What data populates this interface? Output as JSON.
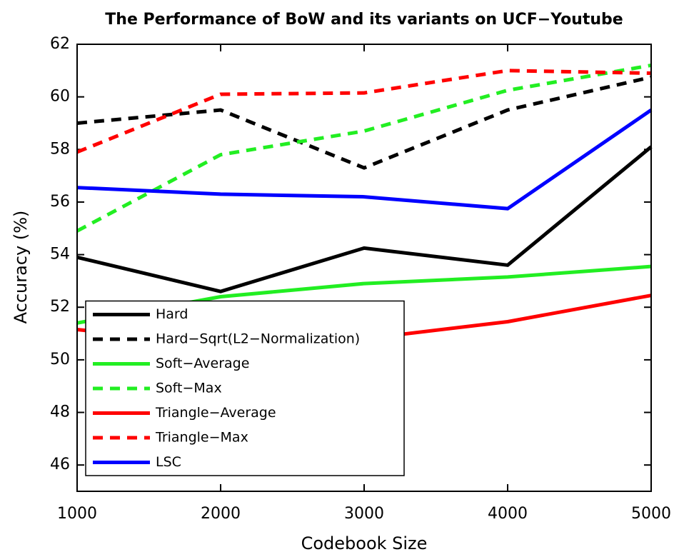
{
  "chart_data": {
    "type": "line",
    "title": "The Performance of BoW and its variants on UCF−Youtube",
    "x_label": "Codebook Size",
    "y_label": "Accuracy (%)",
    "x": [
      1000,
      2000,
      3000,
      4000,
      5000
    ],
    "xlim": [
      1000,
      5000
    ],
    "xticks": [
      1000,
      2000,
      3000,
      4000,
      5000
    ],
    "ylim": [
      45,
      62
    ],
    "yticks": [
      46,
      48,
      50,
      52,
      54,
      56,
      58,
      60,
      62
    ],
    "legend_position": "lower left",
    "series": [
      {
        "name": "Hard",
        "color": "#000000",
        "dashed": false,
        "values": [
          53.9,
          52.6,
          54.25,
          53.6,
          58.1
        ]
      },
      {
        "name": "Hard−Sqrt(L2−Normalization)",
        "color": "#000000",
        "dashed": true,
        "values": [
          59.0,
          59.5,
          57.3,
          59.5,
          60.75
        ]
      },
      {
        "name": "Soft−Average",
        "color": "#22ee22",
        "dashed": false,
        "values": [
          51.4,
          52.4,
          52.9,
          53.15,
          53.55
        ]
      },
      {
        "name": "Soft−Max",
        "color": "#22ee22",
        "dashed": true,
        "values": [
          54.9,
          57.8,
          58.7,
          60.25,
          61.2
        ]
      },
      {
        "name": "Triangle−Average",
        "color": "#ff0000",
        "dashed": false,
        "values": [
          51.15,
          50.6,
          50.8,
          51.45,
          52.45
        ]
      },
      {
        "name": "Triangle−Max",
        "color": "#ff0000",
        "dashed": true,
        "values": [
          57.9,
          60.1,
          60.15,
          61.0,
          60.9
        ]
      },
      {
        "name": "LSC",
        "color": "#0000ff",
        "dashed": false,
        "values": [
          56.55,
          56.3,
          56.2,
          55.75,
          59.5
        ]
      }
    ]
  }
}
